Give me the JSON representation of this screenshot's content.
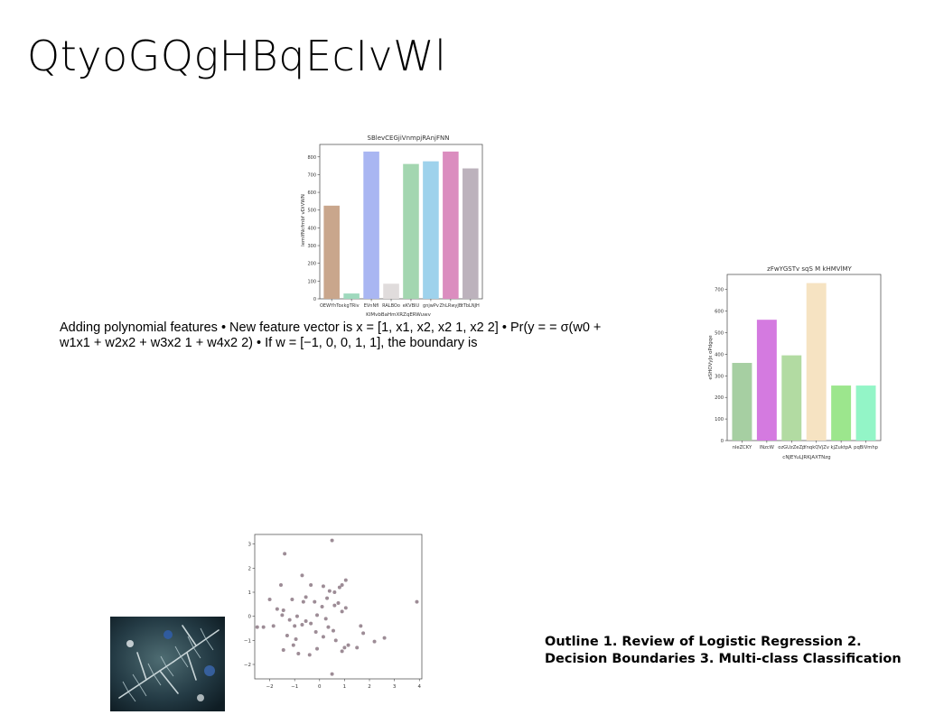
{
  "slide": {
    "title": "QtyoGQgHBqEcIvWl",
    "body_text": "Adding polynomial features • New feature vector is x = [1, x1, x2, x2 1, x2 2] • Pr(y = = σ(w0 + w1x1 + w2x2 + w3x2 1 + w4x2 2) • If w = [−1, 0, 0, 1, 1], the boundary is",
    "outline_text": "Outline 1. Review of Logistic Regression 2. Decision Boundaries 3. Multi-class Classification"
  },
  "chart_data": [
    {
      "type": "bar",
      "title": "SBlevCEGjiVnmpjRAnjFNN",
      "xlabel": "KIMvbBaHmXRZqERWuwv",
      "ylabel": "lemIfNcfmbf vDiVWN",
      "categories": [
        "OEWYhTox",
        "kgTRiv",
        "EVnNfI",
        "RALBOo",
        "eKVBIU",
        "gnjwPv",
        "ZhLRwyJB",
        "tTbLNJH"
      ],
      "values": [
        525,
        30,
        830,
        85,
        760,
        775,
        830,
        735
      ],
      "colors": [
        "#c9a68c",
        "#9fd9bd",
        "#a9b6f2",
        "#e0dcdc",
        "#a3d6b0",
        "#9ed2ec",
        "#db8dbf",
        "#bcb2bc"
      ],
      "ylim": [
        0,
        870
      ],
      "yticks": [
        0,
        100,
        200,
        300,
        400,
        500,
        600,
        700,
        800
      ]
    },
    {
      "type": "bar",
      "title": "zFwYGSTv sqS M kHMVlMY",
      "xlabel": "cNJEYuLJRKjAXTNzg",
      "ylabel": "eSHOVyJx oPdgqe",
      "categories": [
        "nleZCKY",
        "lNzcW",
        "ozGUzZeZp",
        "YnqkQVjZv",
        "kjZuktpA",
        "pqBiVmhp"
      ],
      "values": [
        360,
        560,
        395,
        730,
        255,
        255
      ],
      "colors": [
        "#a6cfa2",
        "#d47ae0",
        "#b2dba2",
        "#f6e3c2",
        "#9ce68d",
        "#93f5c7"
      ],
      "ylim": [
        0,
        770
      ],
      "yticks": [
        0,
        100,
        200,
        300,
        400,
        500,
        600,
        700
      ]
    },
    {
      "type": "scatter",
      "title": "",
      "xlabel": "",
      "ylabel": "",
      "xlim": [
        -2.6,
        4.1
      ],
      "ylim": [
        -2.6,
        3.4
      ],
      "xticks": [
        -2,
        -1,
        0,
        1,
        2,
        3,
        4
      ],
      "yticks": [
        -2,
        -1,
        0,
        1,
        2,
        3
      ],
      "color": "#9d8c96",
      "points": [
        [
          0.5,
          3.15
        ],
        [
          -1.4,
          2.6
        ],
        [
          -0.7,
          1.7
        ],
        [
          1.05,
          1.5
        ],
        [
          -0.35,
          1.3
        ],
        [
          -1.55,
          1.3
        ],
        [
          0.15,
          1.25
        ],
        [
          0.8,
          1.2
        ],
        [
          0.9,
          1.3
        ],
        [
          0.4,
          1.05
        ],
        [
          0.6,
          1.0
        ],
        [
          -0.55,
          0.8
        ],
        [
          -1.1,
          0.7
        ],
        [
          -2.0,
          0.7
        ],
        [
          0.3,
          0.75
        ],
        [
          0.75,
          0.55
        ],
        [
          3.9,
          0.6
        ],
        [
          -0.65,
          0.6
        ],
        [
          -0.2,
          0.6
        ],
        [
          0.1,
          0.4
        ],
        [
          0.6,
          0.45
        ],
        [
          1.05,
          0.35
        ],
        [
          -1.7,
          0.3
        ],
        [
          -1.45,
          0.25
        ],
        [
          0.9,
          0.2
        ],
        [
          -1.5,
          0.05
        ],
        [
          -0.9,
          0.0
        ],
        [
          -0.1,
          0.05
        ],
        [
          -1.2,
          -0.15
        ],
        [
          0.25,
          -0.1
        ],
        [
          -0.55,
          -0.2
        ],
        [
          -0.7,
          -0.35
        ],
        [
          -0.35,
          -0.3
        ],
        [
          -1.85,
          -0.4
        ],
        [
          -1.0,
          -0.4
        ],
        [
          -2.5,
          -0.45
        ],
        [
          -2.25,
          -0.45
        ],
        [
          0.35,
          -0.45
        ],
        [
          1.65,
          -0.4
        ],
        [
          0.55,
          -0.6
        ],
        [
          -0.15,
          -0.65
        ],
        [
          1.75,
          -0.7
        ],
        [
          -1.3,
          -0.8
        ],
        [
          0.15,
          -0.85
        ],
        [
          2.6,
          -0.9
        ],
        [
          -0.95,
          -0.95
        ],
        [
          0.65,
          -1.0
        ],
        [
          2.2,
          -1.05
        ],
        [
          -1.05,
          -1.2
        ],
        [
          1.5,
          -1.3
        ],
        [
          1.0,
          -1.3
        ],
        [
          -0.1,
          -1.35
        ],
        [
          -1.45,
          -1.4
        ],
        [
          -0.85,
          -1.55
        ],
        [
          0.9,
          -1.45
        ],
        [
          1.15,
          -1.2
        ],
        [
          -0.4,
          -1.6
        ],
        [
          0.5,
          -2.4
        ]
      ]
    }
  ],
  "photo": {
    "description_icon": "evergreen-branch-photo"
  }
}
